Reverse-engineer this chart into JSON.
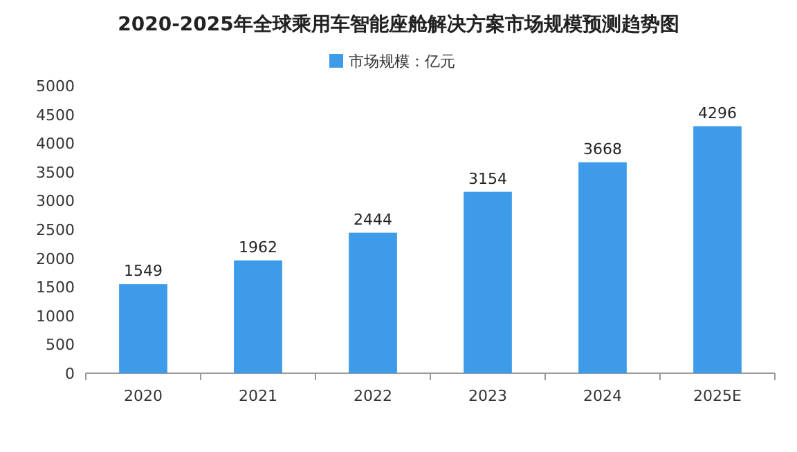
{
  "chart_data": {
    "type": "bar",
    "title": "2020-2025年全球乘用车智能座舱解决方案市场规模预测趋势图",
    "categories": [
      "2020",
      "2021",
      "2022",
      "2023",
      "2024",
      "2025E"
    ],
    "series": [
      {
        "name": "市场规模：亿元",
        "color": "#3d9be9",
        "values": [
          1549,
          1962,
          2444,
          3154,
          3668,
          4296
        ]
      }
    ],
    "ylim": [
      0,
      5000
    ],
    "yticks": [
      0,
      500,
      1000,
      1500,
      2000,
      2500,
      3000,
      3500,
      4000,
      4500,
      5000
    ],
    "data_labels": true,
    "legend": "top"
  }
}
